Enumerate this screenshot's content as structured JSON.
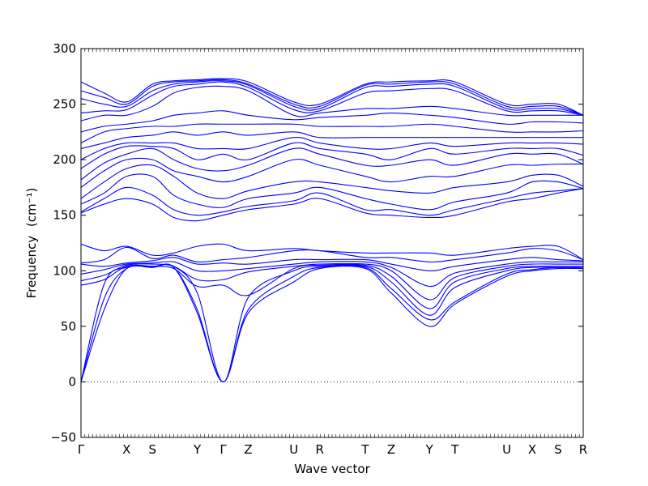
{
  "chart_data": {
    "type": "line",
    "title": "",
    "xlabel": "Wave vector",
    "ylabel": "Frequency",
    "ylabel_unit_tex": "(cm⁻¹)",
    "ylim": [
      -50,
      300
    ],
    "yticks": [
      -50,
      0,
      50,
      100,
      150,
      200,
      250,
      300
    ],
    "x_high_symmetry_points": [
      {
        "label": "Γ",
        "x": 0
      },
      {
        "label": "X",
        "x": 0.59
      },
      {
        "label": "S",
        "x": 0.925
      },
      {
        "label": "Y",
        "x": 1.505
      },
      {
        "label": "Γ",
        "x": 1.84
      },
      {
        "label": "Z",
        "x": 2.165
      },
      {
        "label": "U",
        "x": 2.755
      },
      {
        "label": "R",
        "x": 3.09
      },
      {
        "label": "T",
        "x": 3.68
      },
      {
        "label": "Z",
        "x": 4.015
      },
      {
        "label": "Y",
        "x": 4.51
      },
      {
        "label": "T",
        "x": 4.84
      },
      {
        "label": "U",
        "x": 5.51
      },
      {
        "label": "X",
        "x": 5.84
      },
      {
        "label": "S",
        "x": 6.175
      },
      {
        "label": "R",
        "x": 6.5
      }
    ],
    "xlim": [
      0,
      6.5
    ],
    "zero_line": {
      "y": 0,
      "style": "dotted"
    },
    "series_color": "#0000ff",
    "series": [
      {
        "values": [
          0,
          65,
          102,
          103,
          103,
          62,
          0,
          62,
          90,
          102,
          102,
          80,
          50,
          70,
          95,
          100,
          102,
          102
        ]
      },
      {
        "values": [
          0,
          75,
          102,
          103,
          103,
          65,
          0,
          65,
          95,
          103,
          103,
          84,
          56,
          72,
          97,
          101,
          103,
          102
        ]
      },
      {
        "values": [
          0,
          88,
          103,
          104,
          104,
          80,
          0,
          76,
          100,
          104,
          104,
          90,
          60,
          85,
          100,
          103,
          103,
          103
        ]
      },
      {
        "values": [
          87,
          92,
          104,
          104,
          102,
          86,
          87,
          78,
          102,
          105,
          105,
          95,
          66,
          90,
          102,
          104,
          104,
          104
        ]
      },
      {
        "values": [
          91,
          96,
          105,
          106,
          104,
          92,
          92,
          99,
          104,
          106,
          106,
          100,
          74,
          94,
          104,
          106,
          106,
          106
        ]
      },
      {
        "values": [
          97,
          101,
          106,
          107,
          108,
          100,
          100,
          102,
          106,
          108,
          108,
          103,
          86,
          98,
          106,
          108,
          108,
          108
        ]
      },
      {
        "values": [
          106,
          104,
          107,
          109,
          112,
          106,
          107,
          106,
          110,
          110,
          110,
          106,
          100,
          104,
          110,
          112,
          110,
          109
        ]
      },
      {
        "values": [
          107,
          110,
          121,
          111,
          114,
          108,
          110,
          112,
          118,
          118,
          112,
          112,
          108,
          110,
          116,
          120,
          118,
          110
        ]
      },
      {
        "values": [
          124,
          118,
          122,
          114,
          116,
          122,
          124,
          118,
          120,
          118,
          116,
          116,
          116,
          114,
          120,
          122,
          122,
          110
        ]
      },
      {
        "values": [
          152,
          160,
          165,
          160,
          148,
          145,
          150,
          155,
          160,
          165,
          152,
          150,
          148,
          150,
          162,
          165,
          170,
          174
        ]
      },
      {
        "values": [
          153,
          165,
          175,
          168,
          155,
          150,
          153,
          158,
          163,
          170,
          155,
          155,
          150,
          155,
          165,
          170,
          172,
          174
        ]
      },
      {
        "values": [
          160,
          170,
          185,
          185,
          168,
          160,
          157,
          165,
          170,
          175,
          165,
          160,
          155,
          162,
          170,
          180,
          180,
          174
        ]
      },
      {
        "values": [
          165,
          180,
          192,
          195,
          185,
          170,
          165,
          172,
          180,
          180,
          175,
          172,
          170,
          175,
          180,
          186,
          186,
          176
        ]
      },
      {
        "values": [
          175,
          190,
          200,
          200,
          190,
          185,
          180,
          185,
          200,
          195,
          185,
          180,
          185,
          185,
          195,
          195,
          196,
          196
        ]
      },
      {
        "values": [
          182,
          197,
          205,
          210,
          200,
          192,
          190,
          195,
          210,
          205,
          195,
          195,
          200,
          195,
          205,
          205,
          205,
          196
        ]
      },
      {
        "values": [
          192,
          205,
          212,
          212,
          210,
          200,
          205,
          200,
          215,
          210,
          205,
          200,
          210,
          205,
          210,
          210,
          210,
          204
        ]
      },
      {
        "values": [
          200,
          210,
          215,
          215,
          215,
          210,
          210,
          210,
          220,
          215,
          210,
          210,
          215,
          212,
          215,
          215,
          215,
          214
        ]
      },
      {
        "values": [
          210,
          215,
          220,
          222,
          225,
          222,
          225,
          222,
          225,
          220,
          220,
          220,
          220,
          220,
          220,
          220,
          220,
          220
        ]
      },
      {
        "values": [
          215,
          225,
          228,
          230,
          230,
          232,
          232,
          232,
          232,
          230,
          230,
          230,
          232,
          230,
          225,
          225,
          225,
          226
        ]
      },
      {
        "values": [
          225,
          230,
          232,
          235,
          240,
          242,
          244,
          240,
          236,
          238,
          240,
          242,
          240,
          238,
          232,
          234,
          234,
          233
        ]
      },
      {
        "values": [
          235,
          240,
          240,
          248,
          260,
          265,
          266,
          262,
          240,
          242,
          246,
          246,
          248,
          246,
          240,
          240,
          240,
          240
        ]
      },
      {
        "values": [
          242,
          244,
          245,
          258,
          266,
          268,
          270,
          265,
          245,
          244,
          260,
          262,
          264,
          262,
          244,
          244,
          244,
          240
        ]
      },
      {
        "values": [
          255,
          250,
          248,
          262,
          268,
          270,
          271,
          267,
          248,
          246,
          265,
          266,
          268,
          266,
          246,
          246,
          246,
          240
        ]
      },
      {
        "values": [
          262,
          256,
          250,
          266,
          270,
          271,
          272,
          268,
          250,
          248,
          267,
          268,
          270,
          268,
          248,
          248,
          248,
          240
        ]
      },
      {
        "values": [
          270,
          260,
          252,
          268,
          271,
          272,
          273,
          270,
          252,
          250,
          268,
          270,
          271,
          270,
          250,
          250,
          250,
          240
        ]
      }
    ],
    "x_samples": [
      0,
      0.3,
      0.59,
      0.925,
      1.2,
      1.505,
      1.84,
      2.165,
      2.755,
      3.09,
      3.68,
      4.015,
      4.51,
      4.84,
      5.51,
      5.84,
      6.175,
      6.5
    ],
    "grid": false,
    "legend": "none"
  }
}
